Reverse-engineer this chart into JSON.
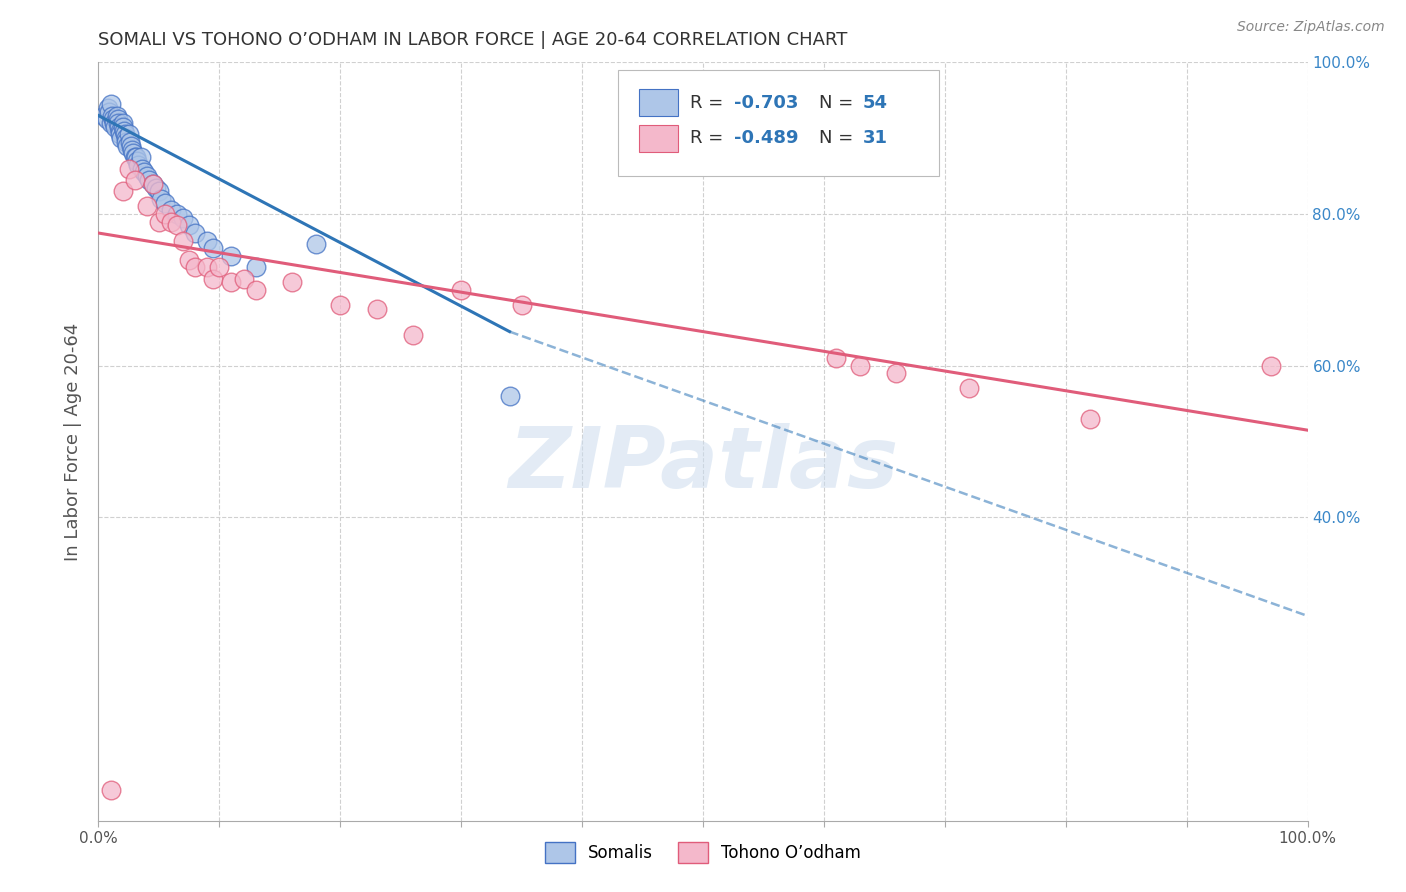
{
  "title": "SOMALI VS TOHONO O’ODHAM IN LABOR FORCE | AGE 20-64 CORRELATION CHART",
  "source": "Source: ZipAtlas.com",
  "ylabel": "In Labor Force | Age 20-64",
  "xlim": [
    0.0,
    1.0
  ],
  "ylim": [
    0.0,
    1.0
  ],
  "somali_color": "#aec6e8",
  "tohono_color": "#f4b8cb",
  "somali_edge_color": "#4472c4",
  "tohono_edge_color": "#e05c7a",
  "trend_somali_color": "#2e75b6",
  "trend_tohono_color": "#e05c7a",
  "watermark_text": "ZIPatlas",
  "bg_color": "#ffffff",
  "grid_color": "#d0d0d0",
  "somali_x": [
    0.005,
    0.007,
    0.008,
    0.009,
    0.01,
    0.01,
    0.011,
    0.012,
    0.013,
    0.014,
    0.015,
    0.016,
    0.016,
    0.017,
    0.018,
    0.018,
    0.019,
    0.02,
    0.02,
    0.021,
    0.022,
    0.023,
    0.023,
    0.024,
    0.025,
    0.026,
    0.027,
    0.028,
    0.029,
    0.03,
    0.031,
    0.032,
    0.033,
    0.035,
    0.036,
    0.038,
    0.04,
    0.042,
    0.045,
    0.048,
    0.05,
    0.052,
    0.055,
    0.06,
    0.065,
    0.07,
    0.075,
    0.08,
    0.09,
    0.095,
    0.11,
    0.13,
    0.18,
    0.34
  ],
  "somali_y": [
    0.93,
    0.925,
    0.94,
    0.935,
    0.945,
    0.92,
    0.93,
    0.925,
    0.92,
    0.915,
    0.93,
    0.925,
    0.92,
    0.915,
    0.91,
    0.905,
    0.9,
    0.92,
    0.915,
    0.91,
    0.905,
    0.9,
    0.895,
    0.89,
    0.905,
    0.895,
    0.89,
    0.885,
    0.88,
    0.875,
    0.875,
    0.87,
    0.865,
    0.875,
    0.86,
    0.855,
    0.85,
    0.845,
    0.84,
    0.835,
    0.83,
    0.82,
    0.815,
    0.805,
    0.8,
    0.795,
    0.785,
    0.775,
    0.765,
    0.755,
    0.745,
    0.73,
    0.76,
    0.56
  ],
  "tohono_x": [
    0.01,
    0.02,
    0.025,
    0.03,
    0.04,
    0.045,
    0.05,
    0.055,
    0.06,
    0.065,
    0.07,
    0.075,
    0.08,
    0.09,
    0.095,
    0.1,
    0.11,
    0.12,
    0.13,
    0.16,
    0.2,
    0.23,
    0.26,
    0.3,
    0.35,
    0.61,
    0.63,
    0.66,
    0.72,
    0.82,
    0.97
  ],
  "tohono_y": [
    0.04,
    0.83,
    0.86,
    0.845,
    0.81,
    0.84,
    0.79,
    0.8,
    0.79,
    0.785,
    0.765,
    0.74,
    0.73,
    0.73,
    0.715,
    0.73,
    0.71,
    0.715,
    0.7,
    0.71,
    0.68,
    0.675,
    0.64,
    0.7,
    0.68,
    0.61,
    0.6,
    0.59,
    0.57,
    0.53,
    0.6
  ],
  "trend_somali_x_start": 0.0,
  "trend_somali_x_solid_end": 0.34,
  "trend_somali_x_end": 1.0,
  "trend_somali_y_start": 0.93,
  "trend_somali_y_solid_end": 0.645,
  "trend_somali_y_end": 0.27,
  "trend_tohono_x_start": 0.0,
  "trend_tohono_x_end": 1.0,
  "trend_tohono_y_start": 0.775,
  "trend_tohono_y_end": 0.515
}
